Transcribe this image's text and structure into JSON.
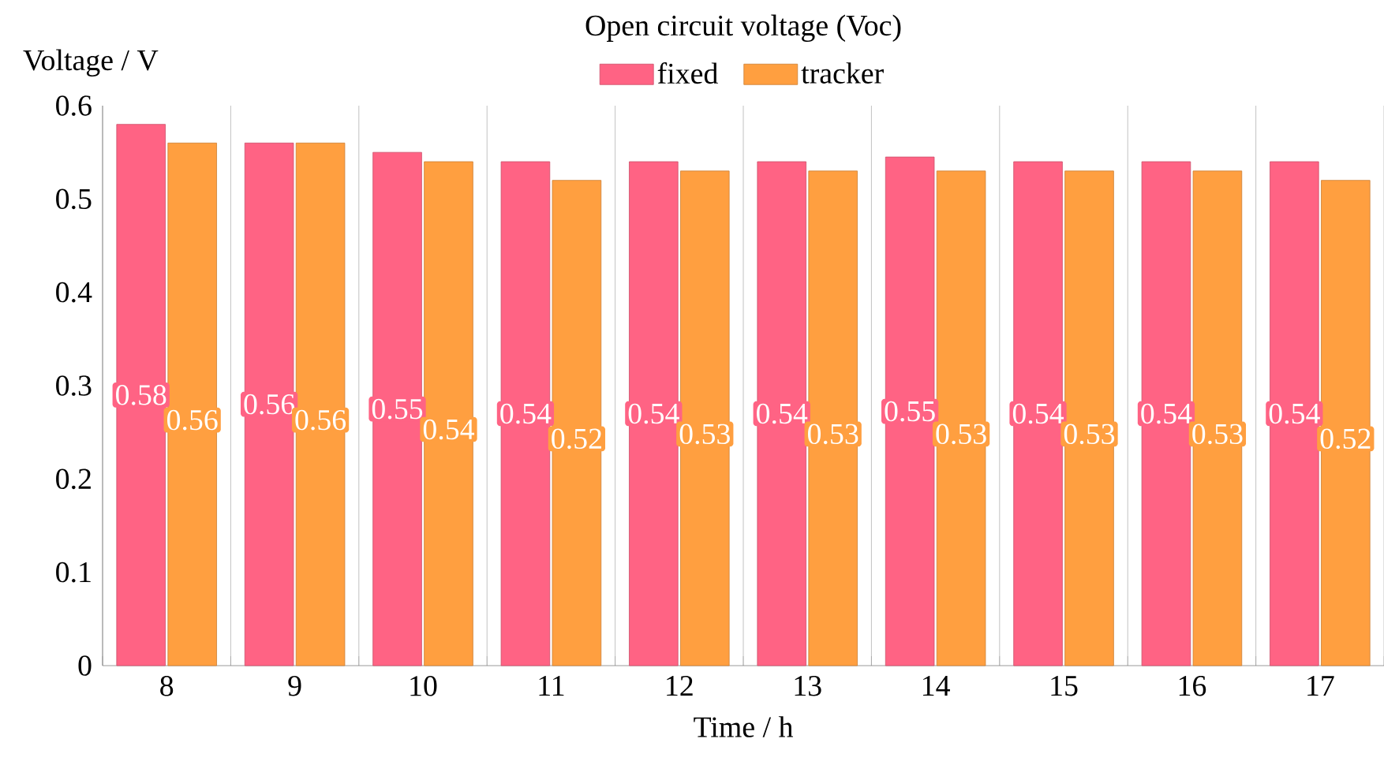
{
  "chart_data": {
    "type": "bar",
    "title": "Open circuit voltage (Voc)",
    "xlabel": "Time / h",
    "ylabel": "Voltage / V",
    "categories": [
      "8",
      "9",
      "10",
      "11",
      "12",
      "13",
      "14",
      "15",
      "16",
      "17"
    ],
    "series": [
      {
        "name": "fixed",
        "color": "#ff6384",
        "values": [
          0.58,
          0.56,
          0.55,
          0.54,
          0.54,
          0.54,
          0.545,
          0.54,
          0.54,
          0.54
        ],
        "value_labels": [
          "0.58",
          "0.56",
          "0.55",
          "0.54",
          "0.54",
          "0.54",
          "0.55",
          "0.54",
          "0.54",
          "0.54"
        ]
      },
      {
        "name": "tracker",
        "color": "#ff9f40",
        "values": [
          0.56,
          0.56,
          0.54,
          0.52,
          0.53,
          0.53,
          0.53,
          0.53,
          0.53,
          0.52
        ],
        "value_labels": [
          "0.56",
          "0.56",
          "0.54",
          "0.52",
          "0.53",
          "0.53",
          "0.53",
          "0.53",
          "0.53",
          "0.52"
        ]
      }
    ],
    "ylim": [
      0,
      0.6
    ],
    "yticks": [
      0,
      0.1,
      0.2,
      0.3,
      0.4,
      0.5,
      0.6
    ],
    "grid": "x",
    "legend": "top"
  }
}
